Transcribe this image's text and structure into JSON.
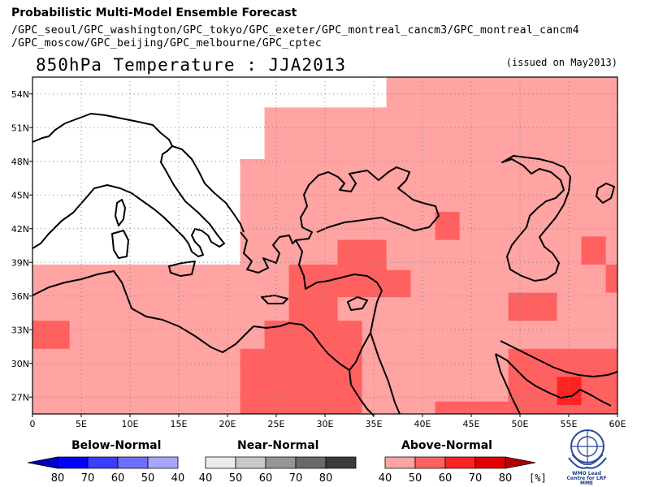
{
  "header": {
    "title": "Probabilistic Multi-Model Ensemble Forecast",
    "gpc_line1": "/GPC_seoul/GPC_washington/GPC_tokyo/GPC_exeter/GPC_montreal_cancm3/GPC_montreal_cancm4",
    "gpc_line2": "/GPC_moscow/GPC_beijing/GPC_melbourne/GPC_cptec"
  },
  "map": {
    "title": "850hPa Temperature : JJA2013",
    "issued": "(issued on May2013)",
    "lon_labels": [
      "0",
      "5E",
      "10E",
      "15E",
      "20E",
      "25E",
      "30E",
      "35E",
      "40E",
      "45E",
      "50E",
      "55E",
      "60E"
    ],
    "lat_labels": [
      "27N",
      "30N",
      "33N",
      "36N",
      "39N",
      "42N",
      "45N",
      "48N",
      "51N",
      "54N"
    ],
    "lon_range": [
      0,
      60
    ],
    "lat_range": [
      25.5,
      55.5
    ],
    "grid": "dotted",
    "colors": {
      "above_40": "#ffa3a3",
      "above_50": "#ff6161",
      "above_60": "#ff2323",
      "above_70": "#e00000",
      "no_signal": "#ffffff"
    }
  },
  "legend": {
    "below": {
      "title": "Below-Normal",
      "labels": [
        "80",
        "70",
        "60",
        "50",
        "40"
      ],
      "colors": [
        "#0000bf",
        "#0000ff",
        "#3c3cff",
        "#6f6fff",
        "#a6a6ff"
      ]
    },
    "near": {
      "title": "Near-Normal",
      "labels": [
        "40",
        "50",
        "60",
        "70",
        "80"
      ],
      "colors": [
        "#ececec",
        "#c8c8c8",
        "#969696",
        "#6a6a6a",
        "#3c3c3c"
      ]
    },
    "above": {
      "title": "Above-Normal",
      "labels": [
        "40",
        "50",
        "60",
        "70",
        "80"
      ],
      "colors": [
        "#ffa3a3",
        "#ff6161",
        "#ff2323",
        "#e00000",
        "#b40000"
      ]
    },
    "unit": "[%]"
  },
  "logo": {
    "caption": "WMO Lead Centre for LRF MME"
  }
}
